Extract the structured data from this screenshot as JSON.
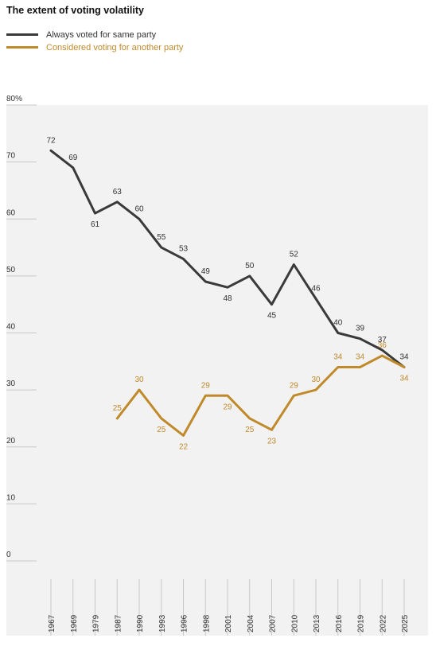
{
  "chart_data": {
    "type": "line",
    "title": "The extent of voting volatility",
    "xlabel": "",
    "ylabel": "",
    "ylim": [
      0,
      80
    ],
    "y_ticks": [
      "0",
      "10",
      "20",
      "30",
      "40",
      "50",
      "60",
      "70",
      "80%"
    ],
    "categories": [
      "1967",
      "1969",
      "1979",
      "1987",
      "1990",
      "1993",
      "1996",
      "1998",
      "2001",
      "2004",
      "2007",
      "2010",
      "2013",
      "2016",
      "2019",
      "2022",
      "2025"
    ],
    "grid": true,
    "legend_position": "top-left",
    "series": [
      {
        "name": "Always voted for same party",
        "color": "#3a3a3a",
        "values": [
          72,
          69,
          61,
          63,
          60,
          55,
          53,
          49,
          48,
          50,
          45,
          52,
          46,
          40,
          39,
          37,
          34
        ]
      },
      {
        "name": "Considered voting for another party",
        "color": "#c08a2b",
        "values": [
          null,
          null,
          null,
          25,
          30,
          25,
          22,
          29,
          29,
          25,
          23,
          29,
          30,
          34,
          34,
          36,
          34
        ]
      }
    ]
  }
}
